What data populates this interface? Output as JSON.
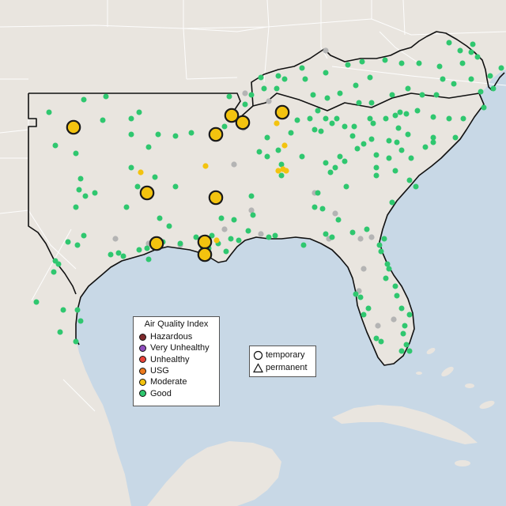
{
  "legend": {
    "title": "Air Quality Index",
    "items": [
      {
        "label": "Hazardous",
        "color": "#7e2a2c"
      },
      {
        "label": "Very Unhealthy",
        "color": "#8f4fbf"
      },
      {
        "label": "Unhealthy",
        "color": "#e9443a"
      },
      {
        "label": "USG",
        "color": "#ec7a1d"
      },
      {
        "label": "Moderate",
        "color": "#f3c30f"
      },
      {
        "label": "Good",
        "color": "#2fc76f"
      }
    ]
  },
  "monitor_types": {
    "temporary": "temporary",
    "permanent": "permanent"
  },
  "colors": {
    "ocean": "#c8d8e6",
    "land": "#e9e5df",
    "border": "#111111",
    "good": "#2fc76f",
    "moderate": "#f3c30f",
    "inactive": "#b4b4b4"
  }
}
